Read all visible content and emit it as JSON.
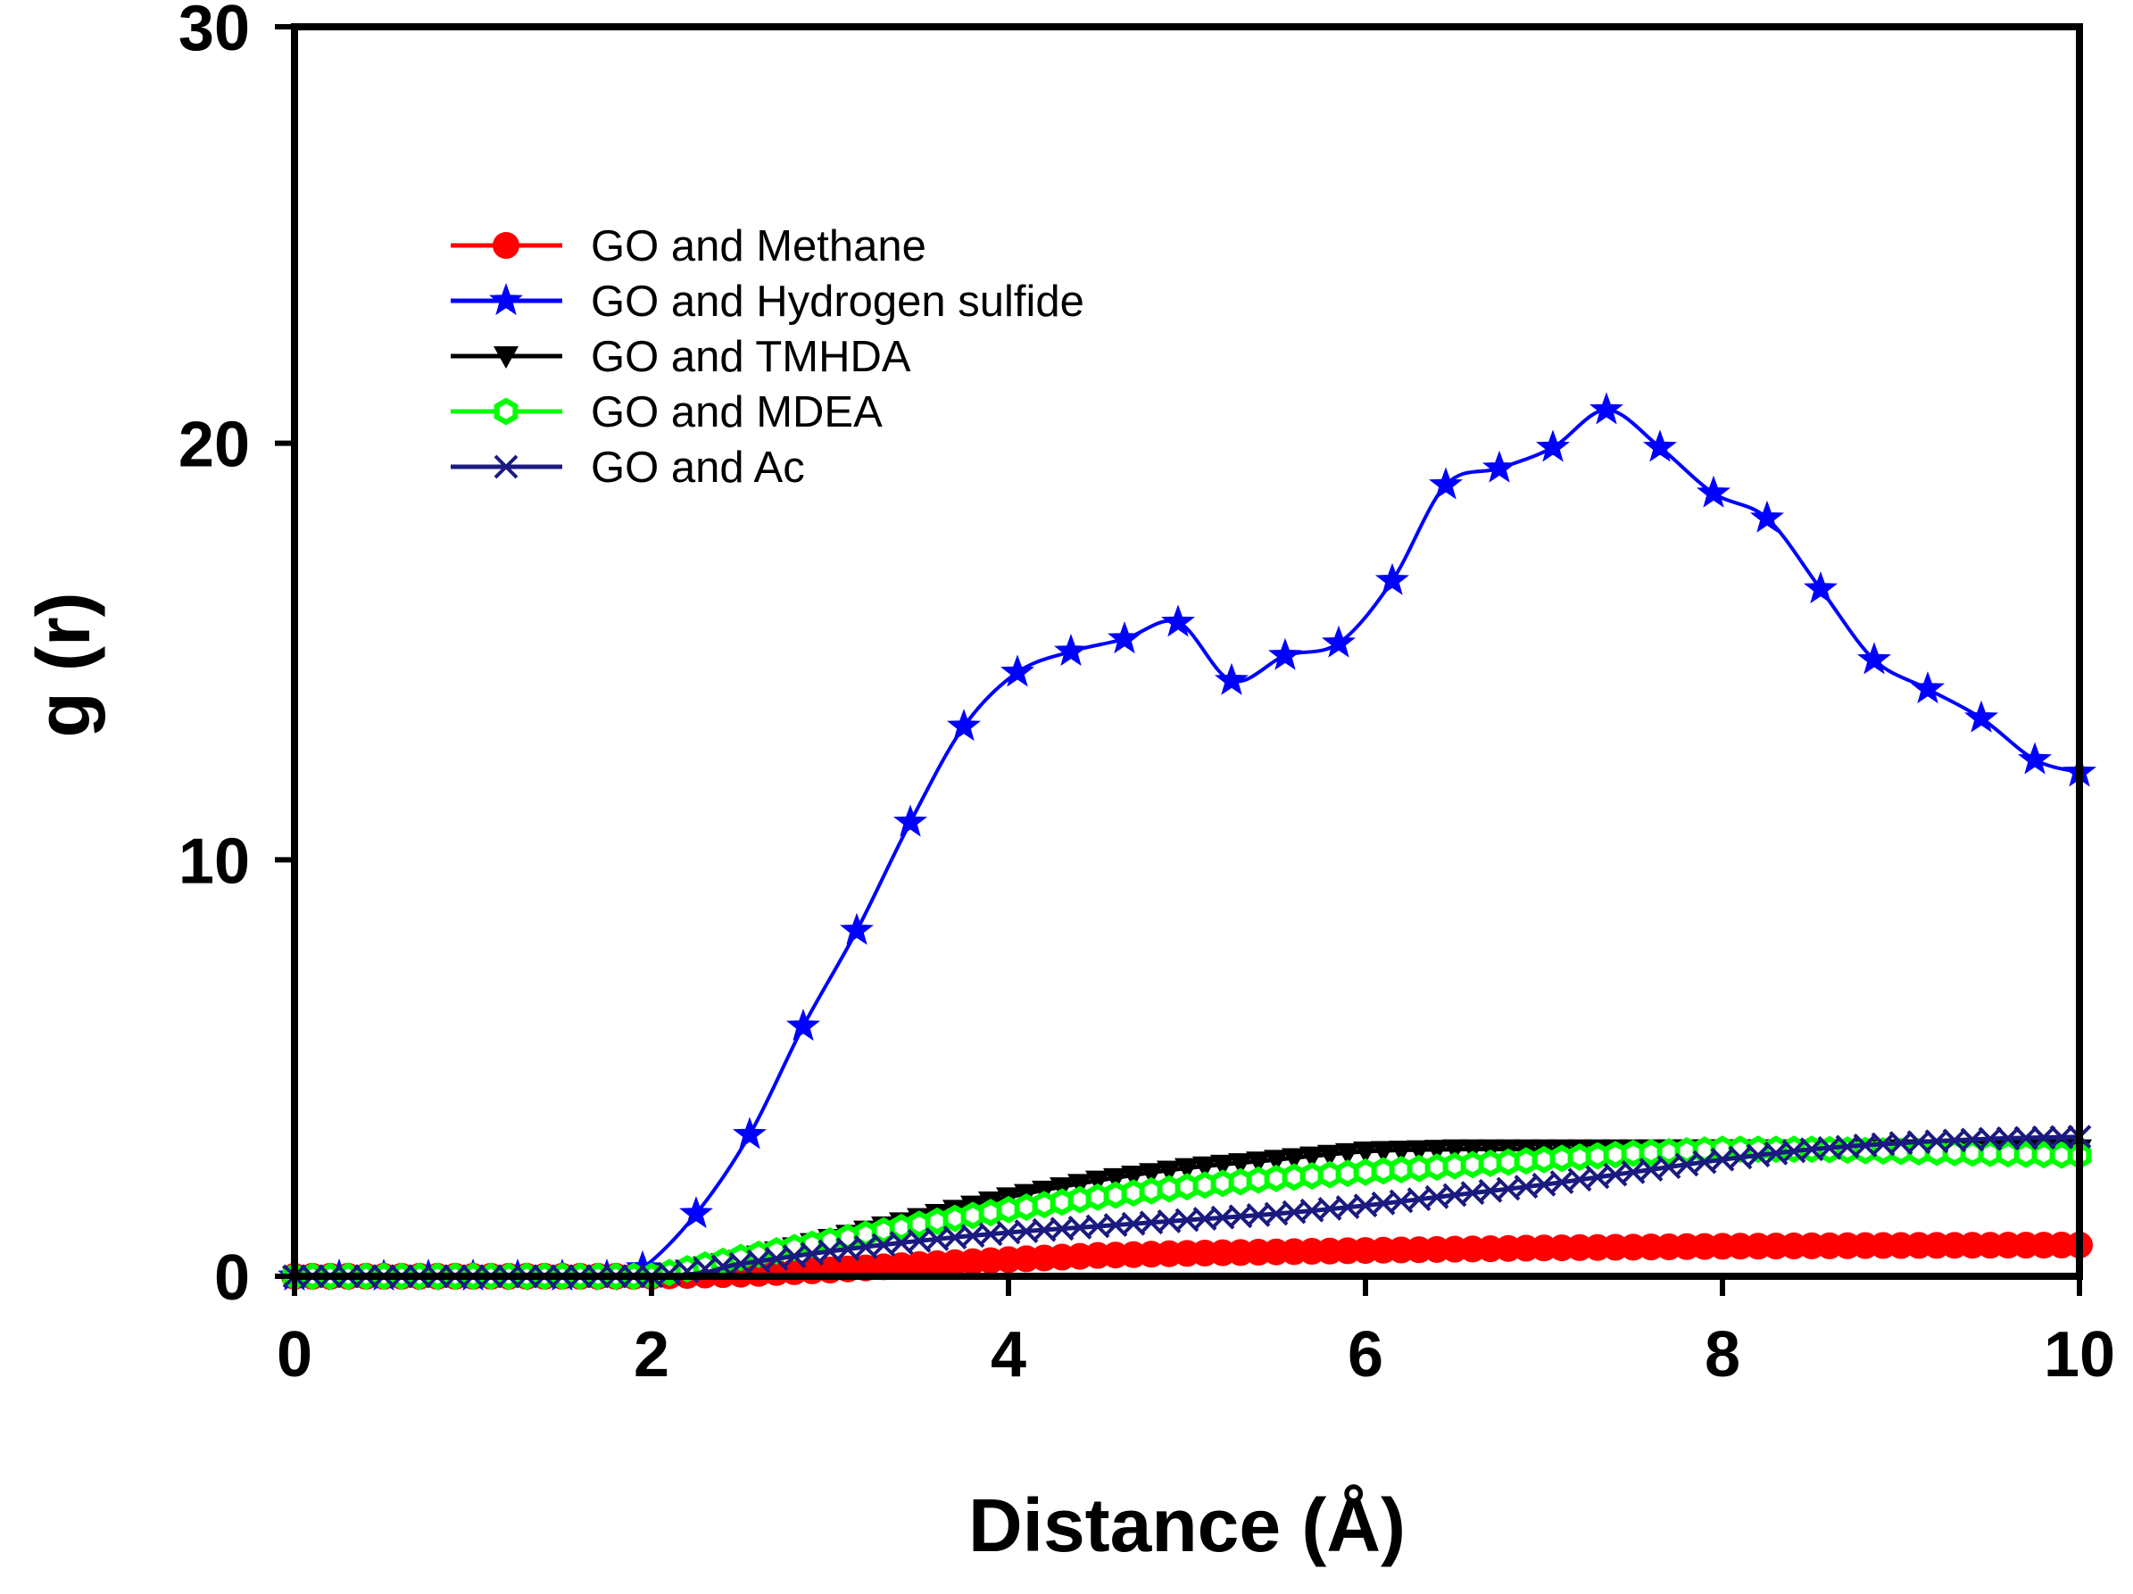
{
  "chart_data": {
    "type": "line",
    "title": "",
    "xlabel": "Distance (Å)",
    "ylabel": "g (r)",
    "xlim": [
      0,
      10
    ],
    "ylim": [
      0,
      30
    ],
    "xticks": [
      0,
      2,
      4,
      6,
      8,
      10
    ],
    "yticks": [
      0,
      10,
      20,
      30
    ],
    "xtick_labels": [
      "0",
      "2",
      "4",
      "6",
      "8",
      "10"
    ],
    "ytick_labels": [
      "0",
      "10",
      "20",
      "30"
    ],
    "grid": false,
    "legend_position": "top-left",
    "series": [
      {
        "name": "GO and Methane",
        "color": "#ff0000",
        "marker": "circle",
        "x": [
          0,
          2,
          2.5,
          3,
          3.5,
          4,
          4.5,
          5,
          6,
          7,
          8,
          9,
          10
        ],
        "y": [
          0,
          0,
          0.05,
          0.15,
          0.28,
          0.4,
          0.5,
          0.55,
          0.62,
          0.68,
          0.72,
          0.74,
          0.75
        ]
      },
      {
        "name": "GO and Hydrogen sulfide",
        "color": "#0000ff",
        "marker": "star",
        "x": [
          0,
          0.25,
          0.5,
          0.75,
          1.0,
          1.25,
          1.5,
          1.75,
          1.95,
          2.25,
          2.55,
          2.85,
          3.15,
          3.45,
          3.75,
          4.05,
          4.35,
          4.65,
          4.95,
          5.25,
          5.55,
          5.85,
          6.15,
          6.45,
          6.75,
          7.05,
          7.35,
          7.65,
          7.95,
          8.25,
          8.55,
          8.85,
          9.15,
          9.45,
          9.75,
          10
        ],
        "y": [
          0,
          0,
          0,
          0,
          0,
          0,
          0,
          0,
          0.2,
          1.5,
          3.4,
          6.0,
          8.3,
          10.9,
          13.2,
          14.5,
          15.0,
          15.3,
          15.7,
          14.3,
          14.9,
          15.2,
          16.7,
          19.0,
          19.4,
          19.9,
          20.8,
          19.9,
          18.8,
          18.2,
          16.5,
          14.8,
          14.1,
          13.4,
          12.4,
          12.1
        ]
      },
      {
        "name": "GO and TMHDA",
        "color": "#000000",
        "marker": "triangle-down",
        "x": [
          0,
          2,
          2.5,
          3,
          3.5,
          4,
          4.5,
          5,
          5.5,
          6,
          6.5,
          7,
          7.5,
          8,
          8.5,
          9,
          9.5,
          10
        ],
        "y": [
          0,
          0,
          0.4,
          0.9,
          1.4,
          1.9,
          2.3,
          2.6,
          2.8,
          3.0,
          3.05,
          3.05,
          3.05,
          3.05,
          3.05,
          3.05,
          3.05,
          3.05
        ]
      },
      {
        "name": "GO and MDEA",
        "color": "#00ff00",
        "marker": "hexagon",
        "x": [
          0,
          2,
          2.5,
          3,
          3.5,
          4,
          4.5,
          5,
          5.5,
          6,
          6.5,
          7,
          7.5,
          8,
          8.5,
          9,
          9.5,
          10
        ],
        "y": [
          0,
          0,
          0.45,
          0.85,
          1.25,
          1.6,
          1.9,
          2.15,
          2.35,
          2.5,
          2.65,
          2.8,
          2.95,
          3.05,
          3.05,
          3.0,
          2.95,
          2.9
        ]
      },
      {
        "name": "GO and Ac",
        "color": "#1a1a80",
        "marker": "x",
        "x": [
          0,
          2,
          2.5,
          3,
          3.5,
          4,
          4.5,
          5,
          5.5,
          6,
          6.5,
          7,
          7.5,
          8,
          8.5,
          9,
          9.5,
          10
        ],
        "y": [
          0,
          0,
          0.3,
          0.6,
          0.85,
          1.05,
          1.2,
          1.35,
          1.5,
          1.7,
          1.95,
          2.2,
          2.5,
          2.8,
          3.05,
          3.2,
          3.3,
          3.35
        ]
      }
    ]
  }
}
